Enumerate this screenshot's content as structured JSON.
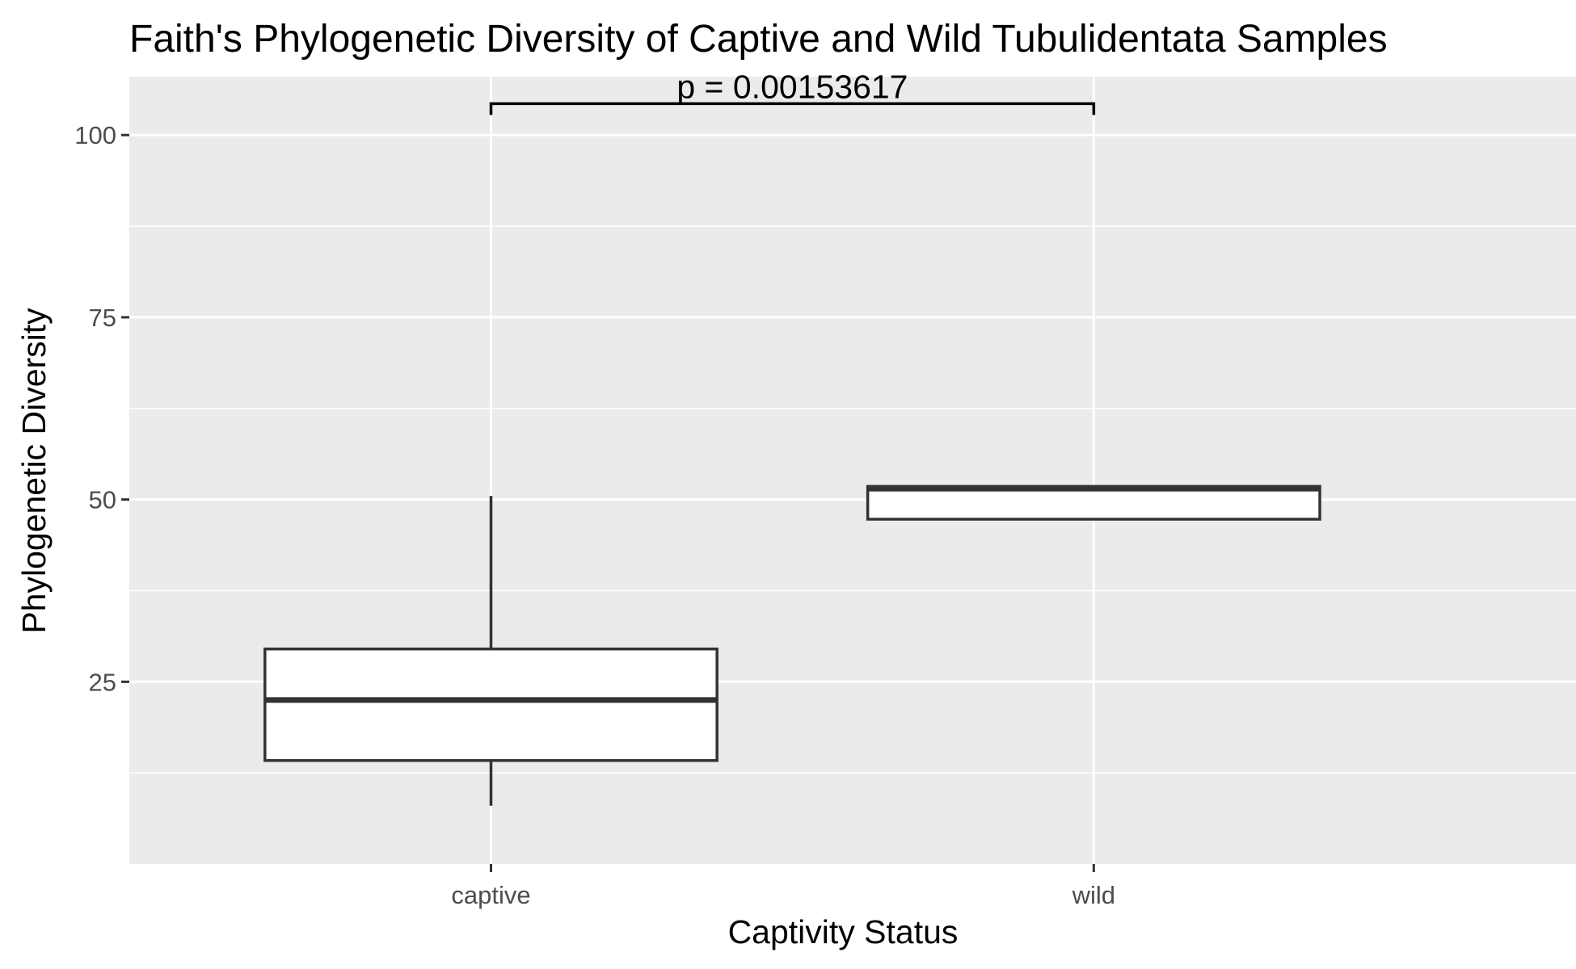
{
  "chart_data": {
    "type": "box",
    "title": "Faith's Phylogenetic Diversity of Captive and Wild Tubulidentata Samples",
    "xlabel": "Captivity Status",
    "ylabel": "Phylogenetic Diversity",
    "categories": [
      "captive",
      "wild"
    ],
    "boxes": [
      {
        "category": "captive",
        "whisker_low": 8.0,
        "q1": 14.2,
        "median": 22.5,
        "q3": 29.5,
        "whisker_high": 50.5
      },
      {
        "category": "wild",
        "whisker_low": 47.3,
        "q1": 47.3,
        "median": 51.5,
        "q3": 51.8,
        "whisker_high": 51.8
      }
    ],
    "yticks": [
      25,
      50,
      75,
      100
    ],
    "ylim": [
      0,
      108
    ],
    "grid": true,
    "annotation": {
      "text": "p = 0.00153617",
      "from": "captive",
      "to": "wild",
      "y": 104.3
    },
    "colors": {
      "panel": "#ebebeb",
      "grid": "#ffffff",
      "box_fill": "#ffffff",
      "box_stroke": "#333333"
    }
  }
}
